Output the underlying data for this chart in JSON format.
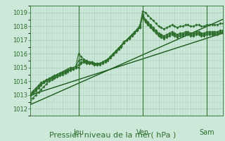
{
  "bg_color": "#cce8d8",
  "grid_color": "#aaccb8",
  "line_color": "#2d6e2d",
  "ylabel": "Pression niveau de la mer( hPa )",
  "ylim": [
    1011.5,
    1019.5
  ],
  "yticks": [
    1012,
    1013,
    1014,
    1015,
    1016,
    1017,
    1018,
    1019
  ],
  "xlim": [
    0,
    72
  ],
  "day_ticks": [
    18,
    42,
    66
  ],
  "day_labels": [
    "Jeu",
    "Ven",
    "Sam"
  ],
  "tick_fontsize": 6,
  "label_fontsize": 8,
  "day_label_fontsize": 7,
  "series": [
    {
      "x": [
        0,
        1,
        2,
        3,
        4,
        5,
        6,
        7,
        8,
        9,
        10,
        11,
        12,
        13,
        14,
        15,
        16,
        17,
        18,
        19,
        20,
        21,
        22,
        23,
        24,
        25,
        26,
        27,
        28,
        29,
        30,
        31,
        32,
        33,
        34,
        35,
        36,
        37,
        38,
        39,
        40,
        41,
        42,
        43,
        44,
        45,
        46,
        47,
        48,
        49,
        50,
        51,
        52,
        53,
        54,
        55,
        56,
        57,
        58,
        59,
        60,
        61,
        62,
        63,
        64,
        65,
        66,
        67,
        68,
        69,
        70,
        71,
        72
      ],
      "y": [
        1012.8,
        1013.1,
        1013.3,
        1013.5,
        1013.7,
        1013.9,
        1014.1,
        1014.2,
        1014.3,
        1014.4,
        1014.5,
        1014.6,
        1014.7,
        1014.8,
        1014.9,
        1015.0,
        1015.0,
        1015.1,
        1016.0,
        1015.8,
        1015.6,
        1015.5,
        1015.4,
        1015.4,
        1015.3,
        1015.3,
        1015.3,
        1015.4,
        1015.5,
        1015.6,
        1015.8,
        1016.0,
        1016.2,
        1016.4,
        1016.6,
        1016.8,
        1017.0,
        1017.1,
        1017.3,
        1017.5,
        1017.7,
        1018.0,
        1019.1,
        1019.0,
        1018.8,
        1018.6,
        1018.4,
        1018.2,
        1018.0,
        1017.9,
        1017.8,
        1017.9,
        1018.0,
        1018.1,
        1018.0,
        1017.9,
        1018.0,
        1018.0,
        1018.1,
        1018.1,
        1018.0,
        1018.0,
        1018.1,
        1018.1,
        1018.0,
        1018.0,
        1018.1,
        1018.1,
        1018.1,
        1018.1,
        1018.1,
        1018.2,
        1018.2
      ],
      "marker": "D",
      "markersize": 1.8,
      "lw": 0.8,
      "color": "#2d6e2d"
    },
    {
      "x": [
        0,
        1,
        2,
        3,
        4,
        5,
        6,
        7,
        8,
        9,
        10,
        11,
        12,
        13,
        14,
        15,
        16,
        17,
        18,
        19,
        20,
        21,
        22,
        23,
        24,
        25,
        26,
        27,
        28,
        29,
        30,
        31,
        32,
        33,
        34,
        35,
        36,
        37,
        38,
        39,
        40,
        41,
        42,
        43,
        44,
        45,
        46,
        47,
        48,
        49,
        50,
        51,
        52,
        53,
        54,
        55,
        56,
        57,
        58,
        59,
        60,
        61,
        62,
        63,
        64,
        65,
        66,
        67,
        68,
        69,
        70,
        71,
        72
      ],
      "y": [
        1012.5,
        1012.8,
        1013.0,
        1013.2,
        1013.4,
        1013.6,
        1013.8,
        1014.0,
        1014.1,
        1014.2,
        1014.3,
        1014.4,
        1014.5,
        1014.6,
        1014.7,
        1014.8,
        1014.9,
        1015.0,
        1015.5,
        1015.6,
        1015.5,
        1015.4,
        1015.3,
        1015.3,
        1015.2,
        1015.2,
        1015.2,
        1015.3,
        1015.4,
        1015.5,
        1015.7,
        1015.9,
        1016.1,
        1016.3,
        1016.5,
        1016.8,
        1017.0,
        1017.2,
        1017.4,
        1017.6,
        1017.8,
        1018.1,
        1018.9,
        1018.5,
        1018.3,
        1018.1,
        1017.9,
        1017.7,
        1017.5,
        1017.4,
        1017.3,
        1017.4,
        1017.5,
        1017.6,
        1017.5,
        1017.4,
        1017.5,
        1017.5,
        1017.6,
        1017.6,
        1017.5,
        1017.5,
        1017.6,
        1017.6,
        1017.5,
        1017.5,
        1017.6,
        1017.6,
        1017.6,
        1017.6,
        1017.6,
        1017.7,
        1017.7
      ],
      "marker": "D",
      "markersize": 1.8,
      "lw": 0.8,
      "color": "#2d6e2d"
    },
    {
      "x": [
        0,
        1,
        2,
        3,
        4,
        5,
        6,
        7,
        8,
        9,
        10,
        11,
        12,
        13,
        14,
        15,
        16,
        17,
        18,
        19,
        20,
        21,
        22,
        23,
        24,
        25,
        26,
        27,
        28,
        29,
        30,
        31,
        32,
        33,
        34,
        35,
        36,
        37,
        38,
        39,
        40,
        41,
        42,
        43,
        44,
        45,
        46,
        47,
        48,
        49,
        50,
        51,
        52,
        53,
        54,
        55,
        56,
        57,
        58,
        59,
        60,
        61,
        62,
        63,
        64,
        65,
        66,
        67,
        68,
        69,
        70,
        71,
        72
      ],
      "y": [
        1013.0,
        1013.2,
        1013.4,
        1013.6,
        1013.8,
        1013.9,
        1014.0,
        1014.1,
        1014.2,
        1014.3,
        1014.4,
        1014.5,
        1014.6,
        1014.7,
        1014.8,
        1014.9,
        1014.9,
        1015.0,
        1015.2,
        1015.4,
        1015.4,
        1015.3,
        1015.3,
        1015.3,
        1015.2,
        1015.2,
        1015.3,
        1015.4,
        1015.5,
        1015.6,
        1015.8,
        1016.0,
        1016.2,
        1016.4,
        1016.6,
        1016.9,
        1017.0,
        1017.2,
        1017.4,
        1017.5,
        1017.7,
        1017.9,
        1018.8,
        1018.4,
        1018.2,
        1018.0,
        1017.8,
        1017.6,
        1017.4,
        1017.3,
        1017.2,
        1017.3,
        1017.4,
        1017.5,
        1017.4,
        1017.3,
        1017.4,
        1017.4,
        1017.5,
        1017.5,
        1017.4,
        1017.4,
        1017.5,
        1017.5,
        1017.4,
        1017.4,
        1017.5,
        1017.5,
        1017.5,
        1017.5,
        1017.5,
        1017.6,
        1017.6
      ],
      "marker": "D",
      "markersize": 1.8,
      "lw": 0.8,
      "color": "#2d6e2d"
    },
    {
      "x": [
        0,
        1,
        2,
        3,
        4,
        5,
        6,
        7,
        8,
        9,
        10,
        11,
        12,
        13,
        14,
        15,
        16,
        17,
        18,
        19,
        20,
        21,
        22,
        23,
        24,
        25,
        26,
        27,
        28,
        29,
        30,
        31,
        32,
        33,
        34,
        35,
        36,
        37,
        38,
        39,
        40,
        41,
        42,
        43,
        44,
        45,
        46,
        47,
        48,
        49,
        50,
        51,
        52,
        53,
        54,
        55,
        56,
        57,
        58,
        59,
        60,
        61,
        62,
        63,
        64,
        65,
        66,
        67,
        68,
        69,
        70,
        71,
        72
      ],
      "y": [
        1013.1,
        1013.3,
        1013.5,
        1013.7,
        1013.9,
        1014.0,
        1014.1,
        1014.2,
        1014.3,
        1014.4,
        1014.5,
        1014.6,
        1014.65,
        1014.7,
        1014.8,
        1014.85,
        1014.9,
        1015.0,
        1015.0,
        1015.3,
        1015.4,
        1015.5,
        1015.4,
        1015.4,
        1015.3,
        1015.3,
        1015.3,
        1015.4,
        1015.5,
        1015.6,
        1015.8,
        1016.0,
        1016.2,
        1016.4,
        1016.6,
        1016.85,
        1017.0,
        1017.15,
        1017.35,
        1017.5,
        1017.7,
        1017.9,
        1018.7,
        1018.3,
        1018.1,
        1017.9,
        1017.7,
        1017.5,
        1017.3,
        1017.2,
        1017.1,
        1017.2,
        1017.3,
        1017.4,
        1017.3,
        1017.2,
        1017.3,
        1017.3,
        1017.4,
        1017.4,
        1017.3,
        1017.3,
        1017.4,
        1017.4,
        1017.3,
        1017.3,
        1017.4,
        1017.4,
        1017.4,
        1017.4,
        1017.4,
        1017.5,
        1017.5
      ],
      "marker": "D",
      "markersize": 1.8,
      "lw": 0.8,
      "color": "#2d6e2d"
    },
    {
      "x": [
        0,
        72
      ],
      "y": [
        1013.0,
        1017.5
      ],
      "marker": null,
      "markersize": 0,
      "lw": 1.0,
      "color": "#1a5a1a"
    },
    {
      "x": [
        0,
        72
      ],
      "y": [
        1012.3,
        1018.5
      ],
      "marker": null,
      "markersize": 0,
      "lw": 1.0,
      "color": "#1a5a1a"
    }
  ],
  "vlines": [
    18,
    42,
    66
  ],
  "vline_color": "#2d6e2d"
}
